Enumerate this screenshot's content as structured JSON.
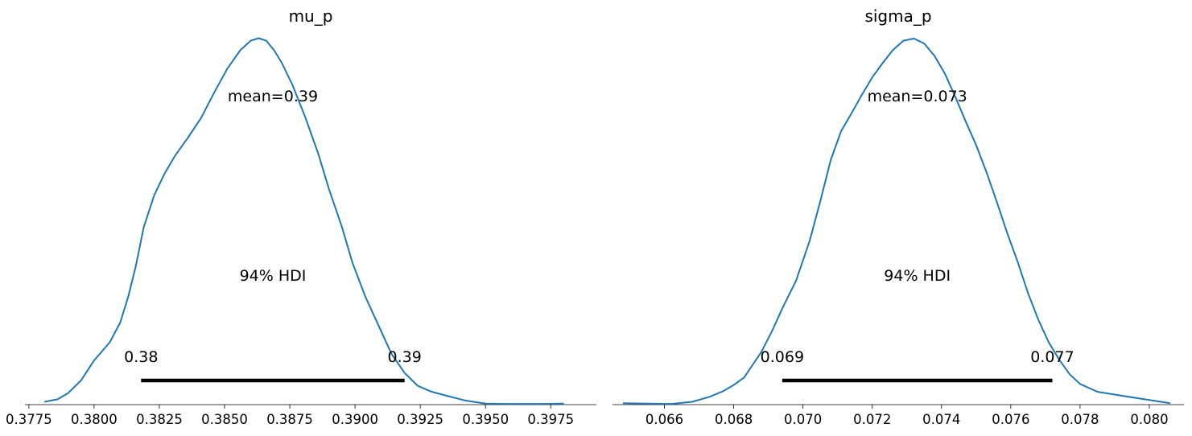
{
  "chart_data": [
    {
      "type": "line",
      "title": "mu_p",
      "xlim": [
        0.37735,
        0.39925
      ],
      "ylim": [
        0,
        1.09
      ],
      "xticks": [
        0.3775,
        0.38,
        0.3825,
        0.385,
        0.3875,
        0.39,
        0.3925,
        0.395,
        0.3975
      ],
      "xtick_labels": [
        "0.3775",
        "0.3800",
        "0.3825",
        "0.3850",
        "0.3875",
        "0.3900",
        "0.3925",
        "0.3950",
        "0.3975"
      ],
      "series": [
        {
          "color": "#1f77b4",
          "x": [
            0.3781,
            0.3786,
            0.379,
            0.3795,
            0.38,
            0.3806,
            0.381,
            0.3813,
            0.3816,
            0.3819,
            0.3823,
            0.3827,
            0.3831,
            0.3836,
            0.3841,
            0.3846,
            0.3851,
            0.3856,
            0.386,
            0.3863,
            0.3866,
            0.3869,
            0.3872,
            0.3876,
            0.3881,
            0.3886,
            0.389,
            0.3895,
            0.3899,
            0.3904,
            0.3909,
            0.3914,
            0.3919,
            0.3924,
            0.3929,
            0.3935,
            0.3942,
            0.395,
            0.3958,
            0.3965,
            0.3972,
            0.398
          ],
          "y": [
            0.008,
            0.015,
            0.032,
            0.068,
            0.124,
            0.175,
            0.23,
            0.301,
            0.389,
            0.497,
            0.587,
            0.648,
            0.698,
            0.749,
            0.804,
            0.875,
            0.942,
            0.994,
            1.021,
            1.028,
            1.021,
            0.994,
            0.958,
            0.897,
            0.805,
            0.702,
            0.605,
            0.498,
            0.398,
            0.302,
            0.222,
            0.142,
            0.089,
            0.053,
            0.037,
            0.025,
            0.012,
            0.003,
            0.002,
            0.002,
            0.002,
            0.003
          ]
        }
      ],
      "mean_label": "mean=0.39",
      "hdi": {
        "low": 0.3818,
        "high": 0.3919,
        "label": "94% HDI",
        "low_label": "0.38",
        "high_label": "0.39"
      }
    },
    {
      "type": "line",
      "title": "sigma_p",
      "xlim": [
        0.0645,
        0.081
      ],
      "ylim": [
        0,
        1.09
      ],
      "xticks": [
        0.066,
        0.068,
        0.07,
        0.072,
        0.074,
        0.076,
        0.078,
        0.08
      ],
      "xtick_labels": [
        "0.066",
        "0.068",
        "0.070",
        "0.072",
        "0.074",
        "0.076",
        "0.078",
        "0.080"
      ],
      "series": [
        {
          "color": "#1f77b4",
          "x": [
            0.0648,
            0.0655,
            0.0662,
            0.0668,
            0.0673,
            0.0677,
            0.068,
            0.0683,
            0.0685,
            0.0688,
            0.0691,
            0.0694,
            0.0698,
            0.0702,
            0.0705,
            0.0708,
            0.0711,
            0.0714,
            0.0717,
            0.072,
            0.0723,
            0.0726,
            0.0729,
            0.0732,
            0.0735,
            0.0738,
            0.0741,
            0.0744,
            0.0747,
            0.075,
            0.0753,
            0.0756,
            0.0759,
            0.0762,
            0.0765,
            0.0768,
            0.0771,
            0.0774,
            0.0777,
            0.078,
            0.0785,
            0.0792,
            0.08,
            0.0806
          ],
          "y": [
            0.004,
            0.003,
            0.002,
            0.008,
            0.022,
            0.038,
            0.055,
            0.076,
            0.105,
            0.148,
            0.205,
            0.269,
            0.348,
            0.462,
            0.571,
            0.686,
            0.767,
            0.817,
            0.869,
            0.918,
            0.958,
            0.995,
            1.021,
            1.027,
            1.013,
            0.978,
            0.928,
            0.863,
            0.794,
            0.728,
            0.652,
            0.568,
            0.481,
            0.4,
            0.312,
            0.237,
            0.174,
            0.126,
            0.085,
            0.058,
            0.036,
            0.025,
            0.013,
            0.004
          ]
        }
      ],
      "mean_label": "mean=0.073",
      "hdi": {
        "low": 0.0694,
        "high": 0.0772,
        "label": "94% HDI",
        "low_label": "0.069",
        "high_label": "0.077"
      }
    }
  ]
}
